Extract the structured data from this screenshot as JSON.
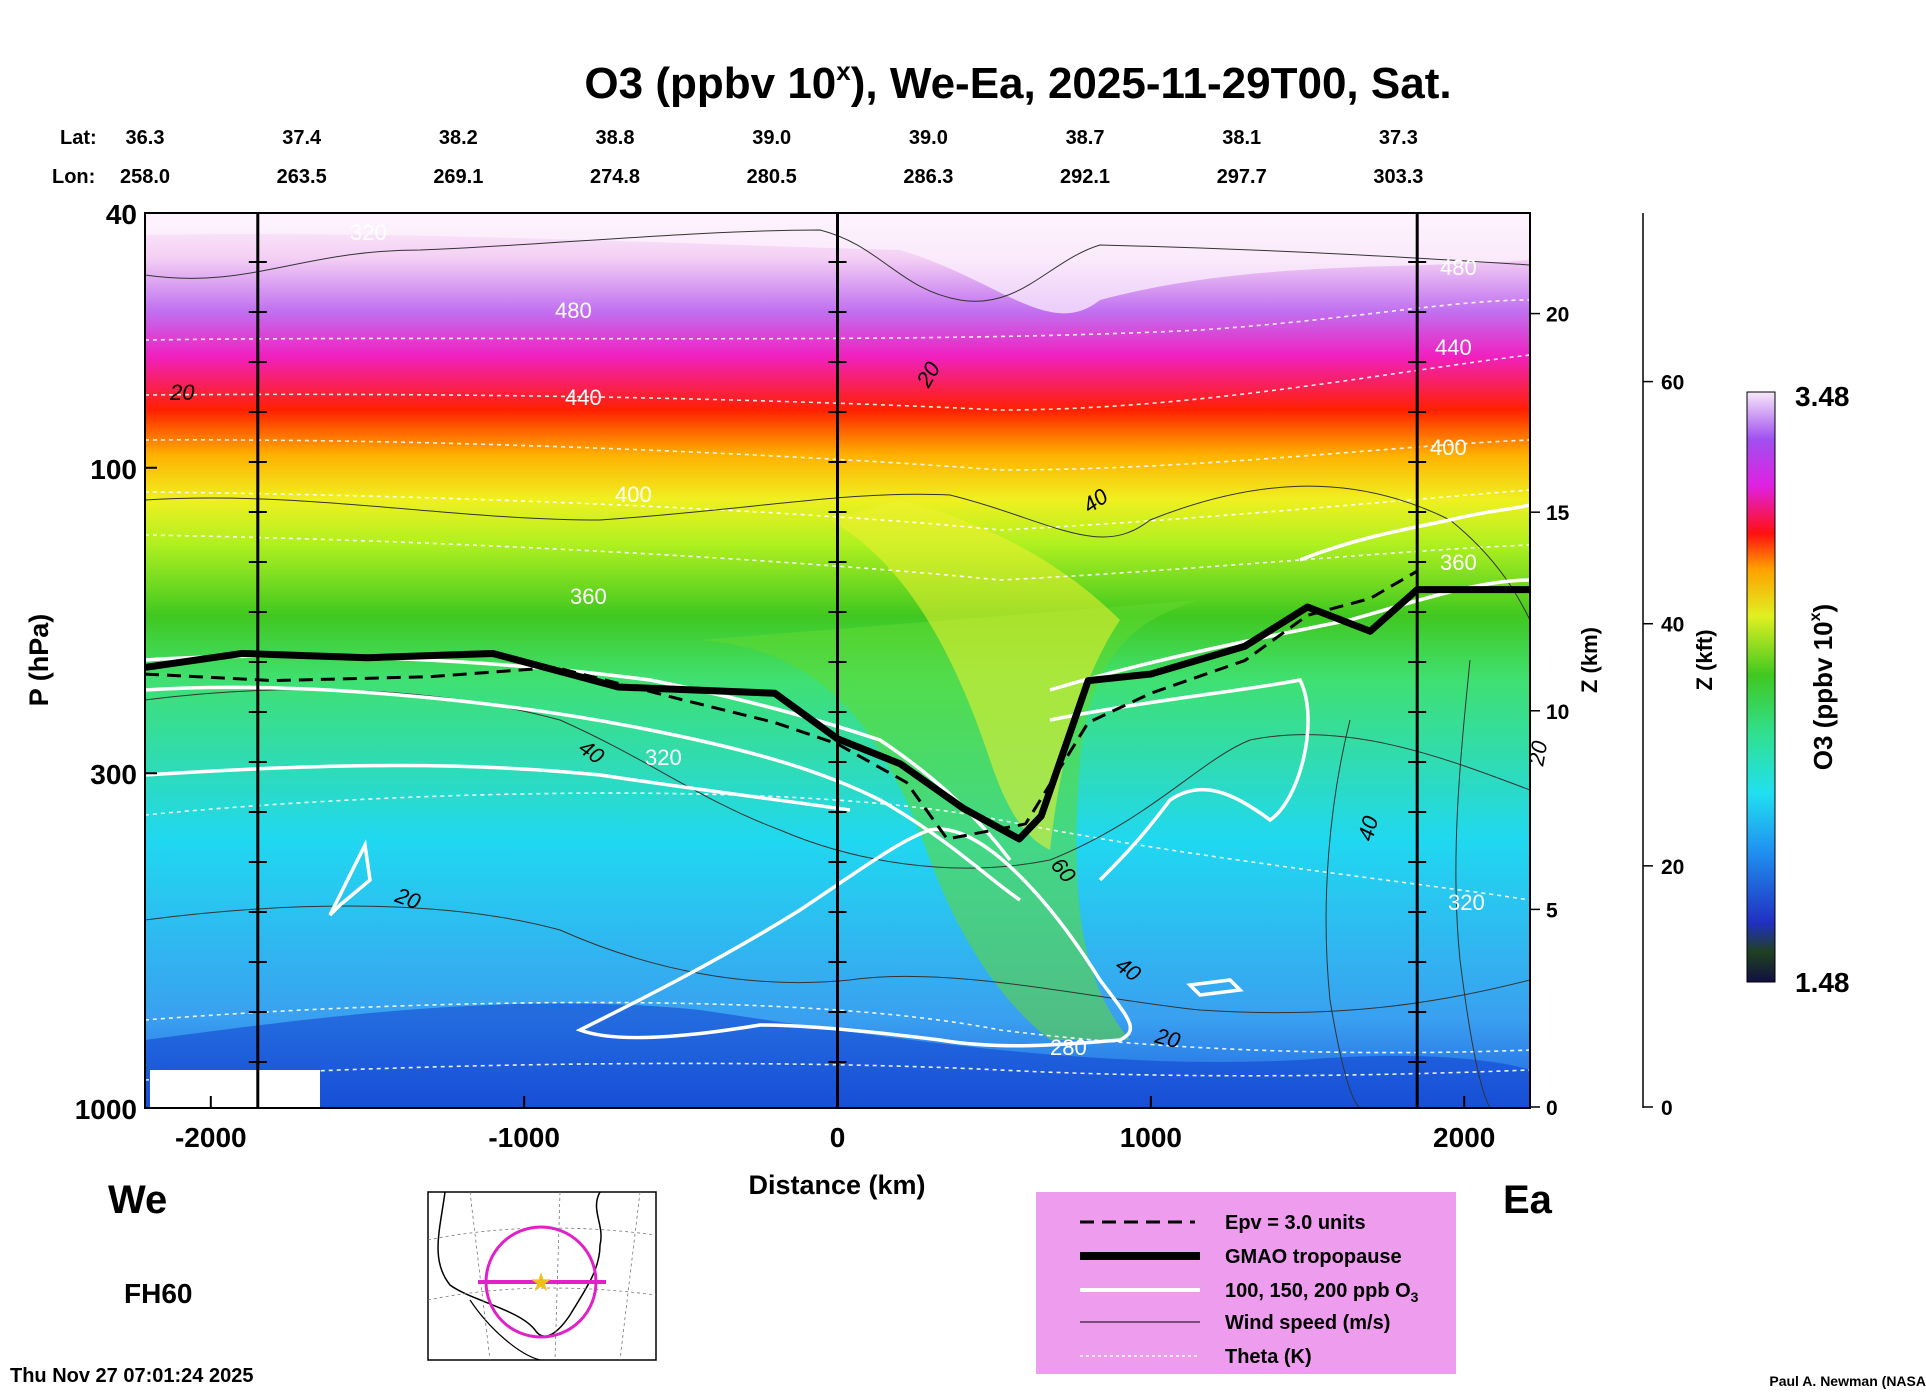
{
  "chart_data": {
    "type": "heatmap",
    "title_main": "O3 (ppbv 10",
    "title_sup": "x",
    "title_rest": "), We-Ea, 2025-11-29T00, Sat.",
    "lat_label": "Lat:",
    "lon_label": "Lon:",
    "lats": [
      "36.3",
      "37.4",
      "38.2",
      "38.8",
      "39.0",
      "39.0",
      "38.7",
      "38.1",
      "37.3"
    ],
    "lons": [
      "258.0",
      "263.5",
      "269.1",
      "274.8",
      "280.5",
      "286.3",
      "292.1",
      "297.7",
      "303.3"
    ],
    "station_x_km": [
      -2210,
      -1710,
      -1210,
      -710,
      -210,
      290,
      790,
      1290,
      1790
    ],
    "xlabel": "Distance (km)",
    "ylabel": "P (hPa)",
    "zlabel_km": "Z (km)",
    "zlabel_kft": "Z (kft)",
    "xlim": [
      -2210,
      2210
    ],
    "ylim_hPa": [
      1000,
      40
    ],
    "xticks": [
      -2000,
      -1000,
      0,
      1000,
      2000
    ],
    "xtick_labels": [
      "-2000",
      "-1000",
      "0",
      "1000",
      "2000"
    ],
    "yticks_hPa": [
      40,
      100,
      300,
      1000
    ],
    "ytick_labels": [
      "40",
      "100",
      "300",
      "1000"
    ],
    "zkm_ticks": [
      0,
      5,
      10,
      15,
      20
    ],
    "zkm_labels": [
      "0",
      "5",
      "10",
      "15",
      "20"
    ],
    "zkft_ticks": [
      0,
      20,
      40,
      60
    ],
    "zkft_labels": [
      "0",
      "20",
      "40",
      "60"
    ],
    "vertical_lines_km": [
      -1850,
      0,
      1850
    ],
    "colorbar": {
      "label": "O3 (ppbv 10",
      "label_sup": "x",
      "label_rest": ")",
      "min": 1.48,
      "max": 3.48,
      "min_label": "1.48",
      "max_label": "3.48"
    },
    "theta_labels": [
      "320",
      "480",
      "440",
      "400",
      "360",
      "320",
      "480",
      "440",
      "400",
      "360",
      "320",
      "280"
    ],
    "wind_labels": [
      "20",
      "20",
      "40",
      "40",
      "20",
      "60",
      "40",
      "20",
      "40",
      "20"
    ],
    "tropopause_hPa": [
      [
        -2210,
        205
      ],
      [
        -1900,
        195
      ],
      [
        -1500,
        198
      ],
      [
        -1100,
        195
      ],
      [
        -700,
        220
      ],
      [
        -200,
        225
      ],
      [
        0,
        265
      ],
      [
        200,
        290
      ],
      [
        400,
        340
      ],
      [
        580,
        380
      ],
      [
        650,
        350
      ],
      [
        800,
        215
      ],
      [
        1000,
        210
      ],
      [
        1300,
        190
      ],
      [
        1500,
        165
      ],
      [
        1700,
        180
      ],
      [
        1850,
        155
      ],
      [
        2210,
        155
      ]
    ],
    "epv_hPa": [
      [
        -2210,
        210
      ],
      [
        -1800,
        215
      ],
      [
        -1300,
        212
      ],
      [
        -900,
        205
      ],
      [
        -500,
        230
      ],
      [
        -200,
        250
      ],
      [
        0,
        270
      ],
      [
        220,
        310
      ],
      [
        350,
        380
      ],
      [
        600,
        360
      ],
      [
        800,
        250
      ],
      [
        1000,
        225
      ],
      [
        1300,
        200
      ],
      [
        1500,
        170
      ],
      [
        1700,
        160
      ],
      [
        1850,
        145
      ]
    ],
    "legend": [
      "Epv = 3.0 units",
      "GMAO tropopause",
      "100, 150, 200 ppb O",
      "Wind speed (m/s)",
      "Theta (K)"
    ],
    "legend_sub": "3",
    "side_we": "We",
    "side_ea": "Ea",
    "forecast_hour": "FH60",
    "timestamp": "Thu Nov 27 07:01:24 2025",
    "credit": "Paul A. Newman (NASA"
  }
}
